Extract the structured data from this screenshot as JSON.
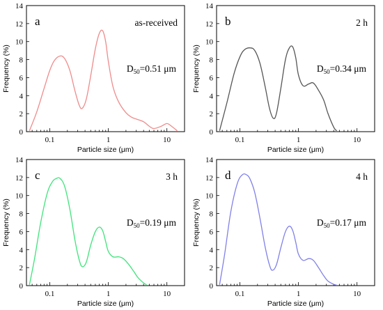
{
  "chart_data": [
    {
      "type": "line",
      "panel_label": "a",
      "condition_label": "as-received",
      "d50": {
        "prefix": "D",
        "subscript": "50",
        "value_text": "=0.51  μm"
      },
      "color": "#ef8b8b",
      "xlabel": "Particle size (μm)",
      "ylabel": "Frequency (%)",
      "xscale": "log",
      "xlim": [
        0.04,
        20
      ],
      "ylim": [
        0,
        14
      ],
      "xticks": [
        0.1,
        1,
        10
      ],
      "xtick_labels": [
        "0.1",
        "1",
        "10"
      ],
      "yticks": [
        0,
        2,
        4,
        6,
        8,
        10,
        12,
        14
      ],
      "ytick_labels": [
        "0",
        "2",
        "4",
        "6",
        "8",
        "10",
        "12",
        "14"
      ],
      "grid": false,
      "series": [
        {
          "x": [
            0.045,
            0.06,
            0.08,
            0.1,
            0.12,
            0.15,
            0.18,
            0.22,
            0.27,
            0.32,
            0.36,
            0.42,
            0.5,
            0.6,
            0.7,
            0.8,
            0.9,
            1.0,
            1.2,
            1.5,
            2.0,
            2.5,
            3.0,
            4.0,
            5.0,
            6.0,
            8.0,
            10.0,
            12.0,
            15.0
          ],
          "y": [
            0.1,
            2.2,
            4.8,
            6.8,
            7.9,
            8.4,
            8.1,
            6.8,
            4.5,
            2.9,
            2.6,
            3.6,
            6.2,
            9.2,
            10.9,
            11.2,
            10.0,
            7.8,
            5.0,
            3.3,
            2.1,
            1.6,
            1.4,
            1.1,
            0.6,
            0.35,
            0.6,
            0.9,
            0.6,
            0.1
          ]
        }
      ]
    },
    {
      "type": "line",
      "panel_label": "b",
      "condition_label": "2 h",
      "d50": {
        "prefix": "D",
        "subscript": "50",
        "value_text": "=0.34  μm"
      },
      "color": "#555555",
      "xlabel": "Particle size (μm)",
      "ylabel": "Frequency (%)",
      "xscale": "log",
      "xlim": [
        0.04,
        20
      ],
      "ylim": [
        0,
        14
      ],
      "xticks": [
        0.1,
        1,
        10
      ],
      "xtick_labels": [
        "0.1",
        "1",
        "10"
      ],
      "yticks": [
        0,
        2,
        4,
        6,
        8,
        10,
        12,
        14
      ],
      "ytick_labels": [
        "0",
        "2",
        "4",
        "6",
        "8",
        "10",
        "12",
        "14"
      ],
      "grid": false,
      "series": [
        {
          "x": [
            0.045,
            0.06,
            0.08,
            0.1,
            0.12,
            0.15,
            0.18,
            0.22,
            0.27,
            0.32,
            0.37,
            0.42,
            0.5,
            0.6,
            0.7,
            0.8,
            0.9,
            1.0,
            1.2,
            1.5,
            1.8,
            2.2,
            2.7,
            3.2,
            4.0,
            4.5
          ],
          "y": [
            0.1,
            3.2,
            6.5,
            8.3,
            9.1,
            9.3,
            9.0,
            7.6,
            5.0,
            2.6,
            1.5,
            2.0,
            4.8,
            8.0,
            9.3,
            9.4,
            8.2,
            6.3,
            5.1,
            5.3,
            5.4,
            4.6,
            3.5,
            2.0,
            0.5,
            0.1
          ]
        }
      ]
    },
    {
      "type": "line",
      "panel_label": "c",
      "condition_label": "3 h",
      "d50": {
        "prefix": "D",
        "subscript": "50",
        "value_text": "=0.19  μm"
      },
      "color": "#3ee37a",
      "xlabel": "Particle size (μm)",
      "ylabel": "Frequency (%)",
      "xscale": "log",
      "xlim": [
        0.04,
        20
      ],
      "ylim": [
        0,
        14
      ],
      "xticks": [
        0.1,
        1,
        10
      ],
      "xtick_labels": [
        "0.1",
        "1",
        "10"
      ],
      "yticks": [
        0,
        2,
        4,
        6,
        8,
        10,
        12,
        14
      ],
      "ytick_labels": [
        "0",
        "2",
        "4",
        "6",
        "8",
        "10",
        "12",
        "14"
      ],
      "grid": false,
      "series": [
        {
          "x": [
            0.045,
            0.055,
            0.07,
            0.09,
            0.11,
            0.13,
            0.15,
            0.18,
            0.22,
            0.27,
            0.32,
            0.36,
            0.42,
            0.5,
            0.6,
            0.7,
            0.8,
            0.9,
            1.0,
            1.2,
            1.5,
            1.8,
            2.2,
            2.7,
            3.2,
            4.0,
            4.5
          ],
          "y": [
            0.1,
            3.0,
            7.0,
            10.2,
            11.5,
            11.9,
            11.9,
            11.0,
            8.5,
            5.0,
            2.8,
            2.1,
            2.6,
            4.5,
            6.0,
            6.5,
            6.1,
            4.9,
            3.8,
            3.2,
            3.2,
            3.0,
            2.4,
            1.6,
            0.9,
            0.3,
            0.1
          ]
        }
      ]
    },
    {
      "type": "line",
      "panel_label": "d",
      "condition_label": "4 h",
      "d50": {
        "prefix": "D",
        "subscript": "50",
        "value_text": "=0.17  μm"
      },
      "color": "#8080e8",
      "xlabel": "Particle size (μm)",
      "ylabel": "Frequency (%)",
      "xscale": "log",
      "xlim": [
        0.04,
        20
      ],
      "ylim": [
        0,
        14
      ],
      "xticks": [
        0.1,
        1,
        10
      ],
      "xtick_labels": [
        "0.1",
        "1",
        "10"
      ],
      "yticks": [
        0,
        2,
        4,
        6,
        8,
        10,
        12,
        14
      ],
      "ytick_labels": [
        "0",
        "2",
        "4",
        "6",
        "8",
        "10",
        "12",
        "14"
      ],
      "grid": false,
      "series": [
        {
          "x": [
            0.045,
            0.055,
            0.07,
            0.09,
            0.11,
            0.13,
            0.15,
            0.18,
            0.22,
            0.27,
            0.32,
            0.36,
            0.42,
            0.5,
            0.6,
            0.7,
            0.8,
            0.9,
            1.0,
            1.2,
            1.5,
            1.8,
            2.2,
            2.7,
            3.2,
            4.0,
            4.5
          ],
          "y": [
            0.1,
            3.5,
            8.2,
            11.3,
            12.3,
            12.3,
            11.8,
            10.3,
            7.5,
            4.3,
            2.3,
            1.7,
            2.3,
            4.2,
            6.0,
            6.6,
            6.1,
            4.8,
            3.5,
            2.8,
            3.0,
            2.8,
            2.0,
            1.1,
            0.5,
            0.15,
            0.05
          ]
        }
      ]
    }
  ]
}
